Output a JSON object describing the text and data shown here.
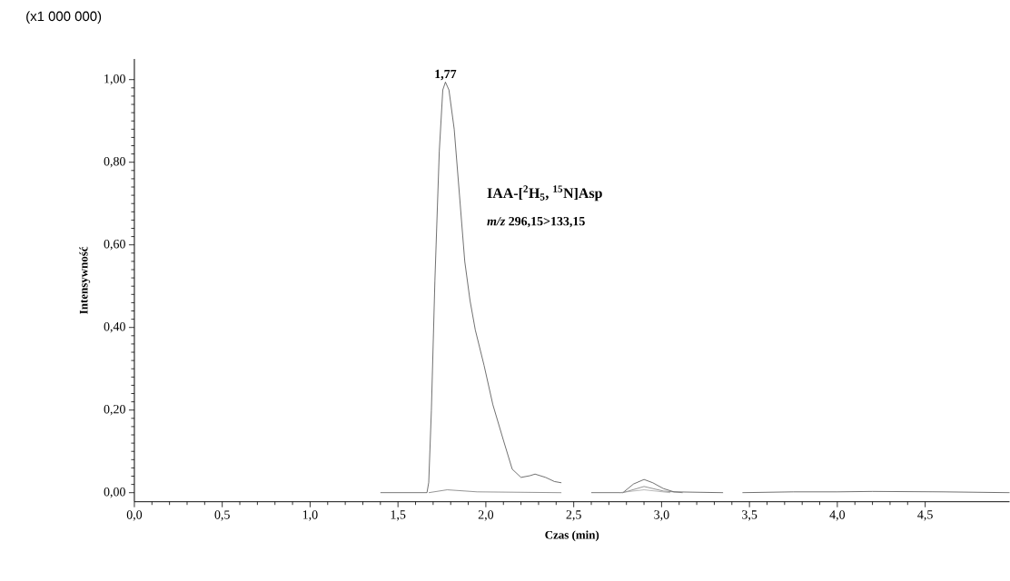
{
  "chart_data": {
    "type": "line",
    "xlabel": "Czas (min)",
    "ylabel": "Intensywność",
    "annotations": [
      "(x1 000 000)",
      {
        "text": "1,77",
        "x": 1.77,
        "y": 0.994
      },
      "IAA-[$^{2}$H$_{5}$, $^{15}$N]Asp",
      "*m/z* 296,15>133,15"
    ],
    "xlim": [
      0,
      4.98
    ],
    "ylim": [
      -0.022,
      1.05
    ],
    "xticks": [
      {
        "value": 0,
        "label": "0,0"
      },
      {
        "value": 0.5,
        "label": "0,5"
      },
      {
        "value": 1.0,
        "label": "1,0"
      },
      {
        "value": 1.5,
        "label": "1,5"
      },
      {
        "value": 2.0,
        "label": "2,0"
      },
      {
        "value": 2.5,
        "label": "2,5"
      },
      {
        "value": 3.0,
        "label": "3,0"
      },
      {
        "value": 3.5,
        "label": "3,5"
      },
      {
        "value": 4.0,
        "label": "4,0"
      },
      {
        "value": 4.5,
        "label": "4,5"
      }
    ],
    "yticks": [
      {
        "value": 0,
        "label": "0,00"
      },
      {
        "value": 0.2,
        "label": "0,20"
      },
      {
        "value": 0.4,
        "label": "0,40"
      },
      {
        "value": 0.6,
        "label": "0,60"
      },
      {
        "value": 0.8,
        "label": "0,80"
      },
      {
        "value": 1.0,
        "label": "1,00"
      }
    ],
    "grid": false,
    "marker": "none",
    "line_style": "solid",
    "series": [
      {
        "color": "#333333",
        "x": [
          1.4,
          1.665,
          1.675,
          1.69,
          1.71,
          1.735,
          1.755,
          1.77,
          1.79,
          1.82,
          1.85,
          1.88,
          1.91,
          1.94,
          1.99,
          2.04,
          2.1,
          2.15,
          2.2,
          2.25,
          2.28,
          2.34,
          2.39,
          2.43,
          2.5,
          2.6,
          2.78,
          2.84,
          2.9,
          2.95,
          3.01,
          3.07,
          3.35,
          3.4,
          3.46,
          3.75,
          4.0,
          4.2,
          4.6,
          4.98
        ],
        "values": [
          0,
          0,
          0.025,
          0.198,
          0.512,
          0.826,
          0.975,
          0.994,
          0.975,
          0.88,
          0.72,
          0.56,
          0.465,
          0.394,
          0.308,
          0.213,
          0.127,
          0.057,
          0.037,
          0.041,
          0.045,
          0.037,
          0.027,
          0.024,
          null,
          0,
          0,
          0.021,
          0.032,
          0.024,
          0.01,
          0.002,
          0,
          null,
          0,
          0.002,
          0.002,
          0.003,
          0.002,
          0
        ]
      },
      {
        "color": "#666666",
        "x": [
          1.675,
          1.78,
          1.95,
          2.43,
          2.5,
          2.78,
          2.9,
          3.01,
          3.12
        ],
        "values": [
          0,
          0.007,
          0.002,
          0,
          null,
          0,
          0.015,
          0.004,
          0
        ]
      },
      {
        "color": "#999999",
        "x": [
          2.76,
          2.9,
          3.05
        ],
        "values": [
          0,
          0.007,
          0
        ]
      }
    ]
  }
}
